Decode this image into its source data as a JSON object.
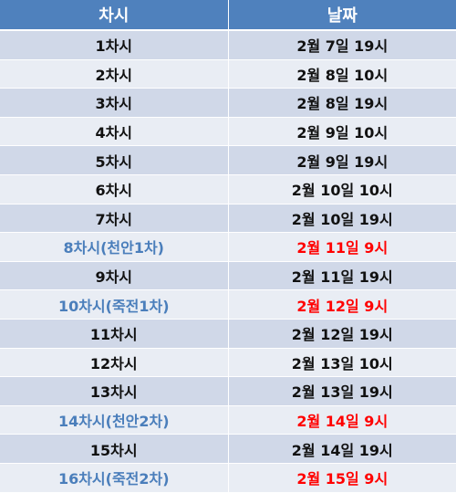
{
  "header": {
    "col_round": "차시",
    "col_date": "날짜"
  },
  "colors": {
    "header_bg": "#4f81bd",
    "row_odd_bg": "#d0d8e8",
    "row_even_bg": "#e9edf4",
    "special_round_text": "#4a7ebb",
    "special_date_text": "#ff0000"
  },
  "rows": [
    {
      "round": "1차시",
      "date": "2월 7일 19시",
      "special": false
    },
    {
      "round": "2차시",
      "date": "2월 8일 10시",
      "special": false
    },
    {
      "round": "3차시",
      "date": "2월 8일 19시",
      "special": false
    },
    {
      "round": "4차시",
      "date": "2월 9일 10시",
      "special": false
    },
    {
      "round": "5차시",
      "date": "2월 9일 19시",
      "special": false
    },
    {
      "round": "6차시",
      "date": "2월 10일 10시",
      "special": false
    },
    {
      "round": "7차시",
      "date": "2월 10일 19시",
      "special": false
    },
    {
      "round": "8차시(천안1차)",
      "date": "2월 11일 9시",
      "special": true
    },
    {
      "round": "9차시",
      "date": "2월 11일 19시",
      "special": false
    },
    {
      "round": "10차시(죽전1차)",
      "date": "2월 12일 9시",
      "special": true
    },
    {
      "round": "11차시",
      "date": "2월 12일 19시",
      "special": false
    },
    {
      "round": "12차시",
      "date": "2월 13일 10시",
      "special": false
    },
    {
      "round": "13차시",
      "date": "2월 13일 19시",
      "special": false
    },
    {
      "round": "14차시(천안2차)",
      "date": "2월 14일 9시",
      "special": true
    },
    {
      "round": "15차시",
      "date": "2월 14일 19시",
      "special": false
    },
    {
      "round": "16차시(죽전2차)",
      "date": "2월 15일 9시",
      "special": true
    }
  ]
}
